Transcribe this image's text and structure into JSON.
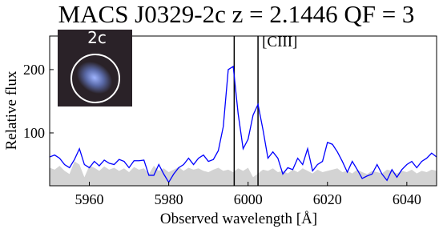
{
  "chart_data": {
    "type": "line",
    "title": "MACS J0329-2c z = 2.1446 QF = 3",
    "x_label": "Observed wavelength  [Å]",
    "y_label": "Relative flux",
    "annotation": "[CIII]",
    "inset_label": "2c",
    "x": [
      5950,
      5951.25,
      5952.5,
      5953.75,
      5955,
      5956.25,
      5957.5,
      5958.75,
      5960,
      5961.25,
      5962.5,
      5963.75,
      5965,
      5966.25,
      5967.5,
      5968.75,
      5970,
      5971.25,
      5972.5,
      5973.75,
      5975,
      5976.25,
      5977.5,
      5978.75,
      5980,
      5981.25,
      5982.5,
      5983.75,
      5985,
      5986.25,
      5987.5,
      5988.75,
      5990,
      5991.25,
      5992.5,
      5993.75,
      5995,
      5996.25,
      5997.5,
      5998.75,
      6000,
      6001.25,
      6002.5,
      6003.75,
      6005,
      6006.25,
      6007.5,
      6008.75,
      6010,
      6011.25,
      6012.5,
      6013.75,
      6015,
      6016.25,
      6017.5,
      6018.75,
      6020,
      6021.25,
      6022.5,
      6023.75,
      6025,
      6026.25,
      6027.5,
      6028.75,
      6030,
      6031.25,
      6032.5,
      6033.75,
      6035,
      6036.25,
      6037.5,
      6038.75,
      6040,
      6041.25,
      6042.5,
      6043.75,
      6045,
      6046.25,
      6047.5
    ],
    "series": [
      {
        "color": "#0000ff",
        "values": [
          62,
          65,
          60,
          50,
          45,
          58,
          75,
          50,
          45,
          55,
          48,
          57,
          52,
          50,
          58,
          55,
          45,
          56,
          56,
          57,
          33,
          33,
          50,
          35,
          22,
          35,
          45,
          50,
          60,
          50,
          60,
          65,
          55,
          58,
          72,
          110,
          200,
          205,
          130,
          75,
          90,
          128,
          145,
          105,
          60,
          70,
          60,
          35,
          45,
          42,
          60,
          50,
          75,
          40,
          50,
          55,
          85,
          82,
          70,
          55,
          38,
          55,
          42,
          28,
          32,
          35,
          50,
          35,
          25,
          42,
          30,
          42,
          50,
          55,
          45,
          55,
          60,
          68,
          62
        ]
      },
      {
        "color": "#d3d3d3",
        "style": "area",
        "values": [
          45,
          42,
          48,
          40,
          35,
          55,
          50,
          30,
          48,
          45,
          40,
          47,
          42,
          45,
          40,
          44,
          38,
          46,
          42,
          44,
          35,
          48,
          40,
          44,
          38,
          42,
          46,
          40,
          45,
          42,
          44,
          40,
          38,
          42,
          45,
          40,
          42,
          38,
          44,
          40,
          45,
          30,
          36,
          42,
          40,
          44,
          38,
          40,
          36,
          42,
          38,
          44,
          40,
          36,
          42,
          38,
          40,
          42,
          44,
          38,
          40,
          36,
          42,
          38,
          35,
          40,
          38,
          36,
          42,
          40,
          36,
          40,
          38,
          42,
          36,
          40,
          38,
          42,
          40
        ]
      }
    ],
    "vlines": [
      5996.5,
      6002.5
    ],
    "vline_color": "#000000",
    "xlim": [
      5950,
      6047.5
    ],
    "ylim": [
      16.5,
      253
    ],
    "xticks": [
      5960,
      5980,
      6000,
      6020,
      6040
    ],
    "yticks": [
      100,
      200
    ]
  }
}
